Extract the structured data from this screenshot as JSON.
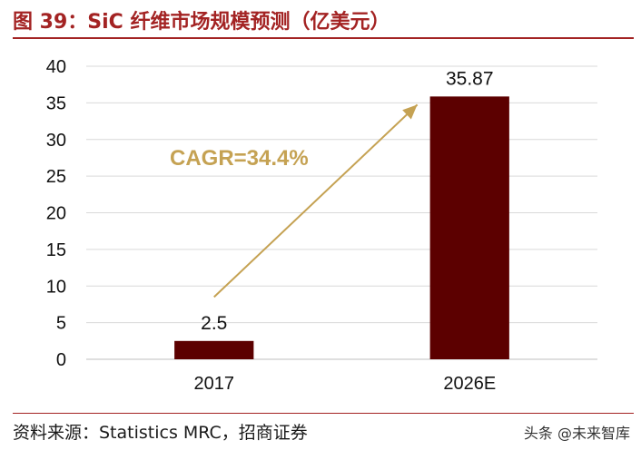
{
  "header": {
    "title": "图 39：SiC 纤维市场规模预测（亿美元）"
  },
  "footer": {
    "source": "资料来源：Statistics MRC，招商证券",
    "watermark": "头条 @未来智库"
  },
  "colors": {
    "accent": "#a32323",
    "bar": "#5c0000",
    "annotation": "#c5a253",
    "grid": "#d9d9d9"
  },
  "chart_data": {
    "type": "bar",
    "categories": [
      "2017",
      "2026E"
    ],
    "values": [
      2.5,
      35.87
    ],
    "value_labels": [
      "2.5",
      "35.87"
    ],
    "title": "",
    "xlabel": "",
    "ylabel": "",
    "ylim": [
      0,
      40
    ],
    "yticks": [
      "0",
      "5",
      "10",
      "15",
      "20",
      "25",
      "30",
      "35",
      "40"
    ],
    "grid": true,
    "legend": "none",
    "annotation": {
      "text": "CAGR=34.4%",
      "type": "arrow",
      "from": {
        "category": "2017",
        "value": 8.5
      },
      "to": {
        "category": "2026E",
        "value": 35.0
      }
    }
  }
}
